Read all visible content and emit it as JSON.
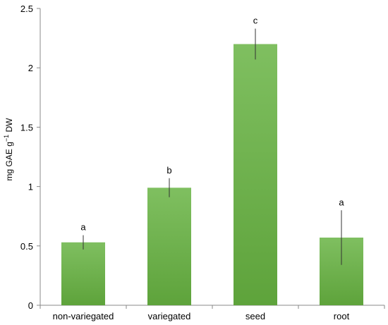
{
  "chart_data": {
    "type": "bar",
    "categories": [
      "non-variegated",
      "variegated",
      "seed",
      "root"
    ],
    "values": [
      0.53,
      0.99,
      2.2,
      0.57
    ],
    "error_low": [
      0.47,
      0.91,
      2.07,
      0.34
    ],
    "error_high": [
      0.59,
      1.07,
      2.33,
      0.8
    ],
    "significance": [
      "a",
      "b",
      "c",
      "a"
    ],
    "ylabel_main": "mg GAE g",
    "ylabel_sup": "−1",
    "ylabel_tail": " DW",
    "ylim": [
      0,
      2.5
    ],
    "yticks": [
      "0",
      "0.5",
      "1",
      "1.5",
      "2",
      "2.5"
    ],
    "grid": false,
    "bar_color_top": "#7fbf60",
    "bar_color_bottom": "#5ea33b"
  }
}
